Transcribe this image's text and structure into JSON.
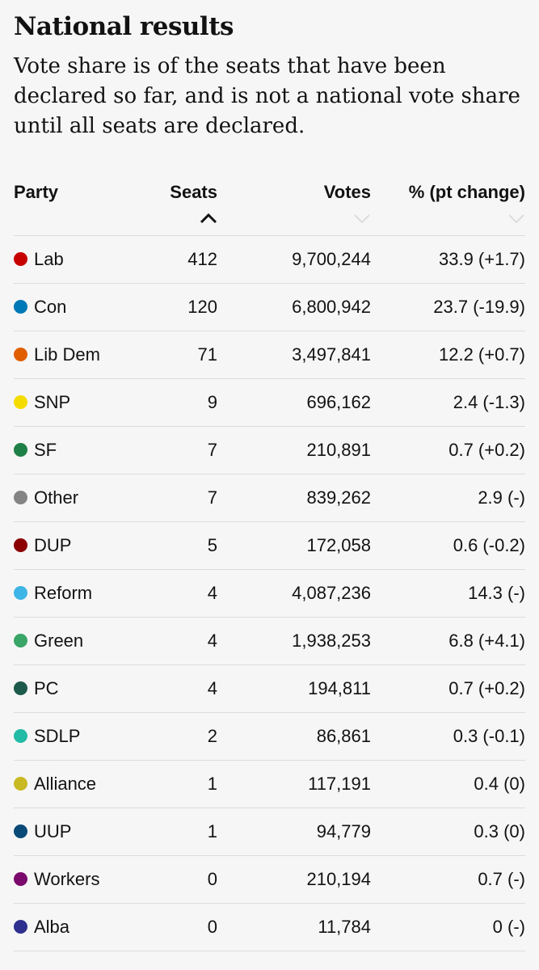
{
  "header": {
    "title": "National results",
    "subtitle": "Vote share is of the seats that have been declared so far, and is not a national vote share until all seats are declared."
  },
  "table": {
    "columns": [
      "Party",
      "Seats",
      "Votes",
      "% (pt change)"
    ],
    "sorted_by": "Seats",
    "rows": [
      {
        "party": "Lab",
        "color": "#c70000",
        "seats": "412",
        "votes": "9,700,244",
        "pct": "33.9 (+1.7)"
      },
      {
        "party": "Con",
        "color": "#0077b6",
        "seats": "120",
        "votes": "6,800,942",
        "pct": "23.7 (-19.9)"
      },
      {
        "party": "Lib Dem",
        "color": "#e05e00",
        "seats": "71",
        "votes": "3,497,841",
        "pct": "12.2 (+0.7)"
      },
      {
        "party": "SNP",
        "color": "#f5dc00",
        "seats": "9",
        "votes": "696,162",
        "pct": "2.4 (-1.3)"
      },
      {
        "party": "SF",
        "color": "#1e8046",
        "seats": "7",
        "votes": "210,891",
        "pct": "0.7 (+0.2)"
      },
      {
        "party": "Other",
        "color": "#848484",
        "seats": "7",
        "votes": "839,262",
        "pct": "2.9 (-)"
      },
      {
        "party": "DUP",
        "color": "#8b0000",
        "seats": "5",
        "votes": "172,058",
        "pct": "0.6 (-0.2)"
      },
      {
        "party": "Reform",
        "color": "#3db5e6",
        "seats": "4",
        "votes": "4,087,236",
        "pct": "14.3 (-)"
      },
      {
        "party": "Green",
        "color": "#39a566",
        "seats": "4",
        "votes": "1,938,253",
        "pct": "6.8 (+4.1)"
      },
      {
        "party": "PC",
        "color": "#1c5a4b",
        "seats": "4",
        "votes": "194,811",
        "pct": "0.7 (+0.2)"
      },
      {
        "party": "SDLP",
        "color": "#22bba6",
        "seats": "2",
        "votes": "86,861",
        "pct": "0.3 (-0.1)"
      },
      {
        "party": "Alliance",
        "color": "#c9b923",
        "seats": "1",
        "votes": "117,191",
        "pct": "0.4 (0)"
      },
      {
        "party": "UUP",
        "color": "#0a4a78",
        "seats": "1",
        "votes": "94,779",
        "pct": "0.3 (0)"
      },
      {
        "party": "Workers",
        "color": "#7a0a6c",
        "seats": "0",
        "votes": "210,194",
        "pct": "0.7 (-)"
      },
      {
        "party": "Alba",
        "color": "#2f2f8f",
        "seats": "0",
        "votes": "11,784",
        "pct": "0 (-)"
      }
    ]
  }
}
